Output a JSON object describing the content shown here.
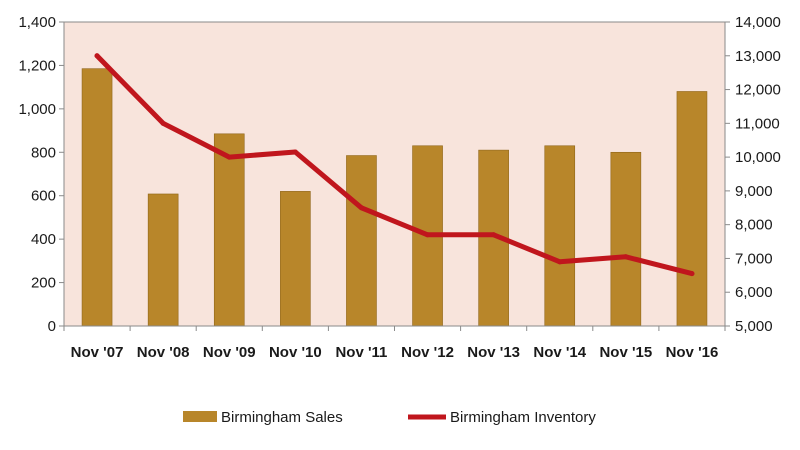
{
  "chart_data": {
    "type": "bar+line",
    "categories": [
      "Nov '07",
      "Nov '08",
      "Nov '09",
      "Nov '10",
      "Nov '11",
      "Nov '12",
      "Nov '13",
      "Nov '14",
      "Nov '15",
      "Nov '16"
    ],
    "series": [
      {
        "name": "Birmingham Sales",
        "type": "bar",
        "axis": "left",
        "color": "#b8862a",
        "values": [
          1185,
          608,
          885,
          620,
          785,
          830,
          810,
          830,
          800,
          1080
        ]
      },
      {
        "name": "Birmingham Inventory",
        "type": "line",
        "axis": "right",
        "color": "#c0161d",
        "values": [
          13000,
          11000,
          10000,
          10150,
          8500,
          7700,
          7700,
          6900,
          7050,
          6550
        ]
      }
    ],
    "ylim_left": [
      0,
      1400
    ],
    "yticks_left": [
      "0",
      "200",
      "400",
      "600",
      "800",
      "1,000",
      "1,200",
      "1,400"
    ],
    "ylim_right": [
      5000,
      14000
    ],
    "yticks_right": [
      "5,000",
      "6,000",
      "7,000",
      "8,000",
      "9,000",
      "10,000",
      "11,000",
      "12,000",
      "13,000",
      "14,000"
    ],
    "plot_background": "#f8e4dc",
    "grid": false,
    "legend_position": "bottom"
  }
}
